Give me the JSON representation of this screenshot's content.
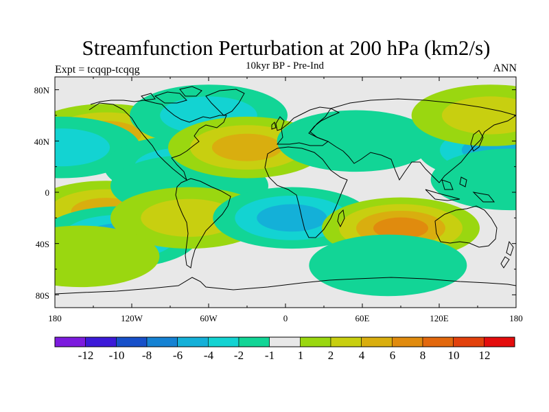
{
  "plot": {
    "title": "Streamfunction Perturbation at 200 hPa (km2/s)",
    "left_string": "Expt = tcqqp-tcqqg",
    "center_string": "10kyr BP - Pre-Ind",
    "right_string": "ANN"
  },
  "axes": {
    "y_ticks": [
      "80N",
      "40N",
      "0",
      "40S",
      "80S"
    ],
    "x_ticks": [
      "180",
      "120W",
      "60W",
      "0",
      "60E",
      "120E",
      "180"
    ]
  },
  "colorbar": {
    "colors": [
      "#7c1bde",
      "#3c1ad8",
      "#1750c9",
      "#1582d3",
      "#14b0d8",
      "#13d3d2",
      "#12d596",
      "#e8e8e8",
      "#9ad710",
      "#c8cf10",
      "#d9ae0f",
      "#e08b0e",
      "#e2680d",
      "#e2410c",
      "#e40d0d"
    ],
    "labels": [
      "-12",
      "-10",
      "-8",
      "-6",
      "-4",
      "-2",
      "-1",
      "1",
      "2",
      "4",
      "6",
      "8",
      "10",
      "12"
    ]
  },
  "chart_data": {
    "type": "heatmap",
    "title": "Streamfunction Perturbation at 200 hPa (km2/s)",
    "subtitle": "10kyr BP - Pre-Ind",
    "experiment": "Expt = tcqqp-tcqqg",
    "period": "ANN",
    "x_range": [
      -180,
      180
    ],
    "y_range": [
      -90,
      90
    ],
    "levels": [
      -12,
      -10,
      -8,
      -6,
      -4,
      -2,
      -1,
      1,
      2,
      4,
      6,
      8,
      10,
      12
    ],
    "anomaly_centers": [
      {
        "lon": -140,
        "lat": 45,
        "value": 4
      },
      {
        "lon": -140,
        "lat": -15,
        "value": 5
      },
      {
        "lon": -130,
        "lat": -35,
        "value": -4
      },
      {
        "lon": -175,
        "lat": 35,
        "value": -3
      },
      {
        "lon": -60,
        "lat": 60,
        "value": -3
      },
      {
        "lon": -80,
        "lat": 20,
        "value": -2
      },
      {
        "lon": -75,
        "lat": 5,
        "value": -1
      },
      {
        "lon": -75,
        "lat": -20,
        "value": 3
      },
      {
        "lon": -30,
        "lat": 35,
        "value": 5
      },
      {
        "lon": 5,
        "lat": -20,
        "value": -4
      },
      {
        "lon": 55,
        "lat": 40,
        "value": -1
      },
      {
        "lon": 90,
        "lat": -28,
        "value": 6
      },
      {
        "lon": 80,
        "lat": -57,
        "value": -1
      },
      {
        "lon": 165,
        "lat": 33,
        "value": -4
      },
      {
        "lon": 160,
        "lat": 60,
        "value": 2
      },
      {
        "lon": 175,
        "lat": 10,
        "value": -1
      },
      {
        "lon": -160,
        "lat": -50,
        "value": 1
      }
    ]
  }
}
